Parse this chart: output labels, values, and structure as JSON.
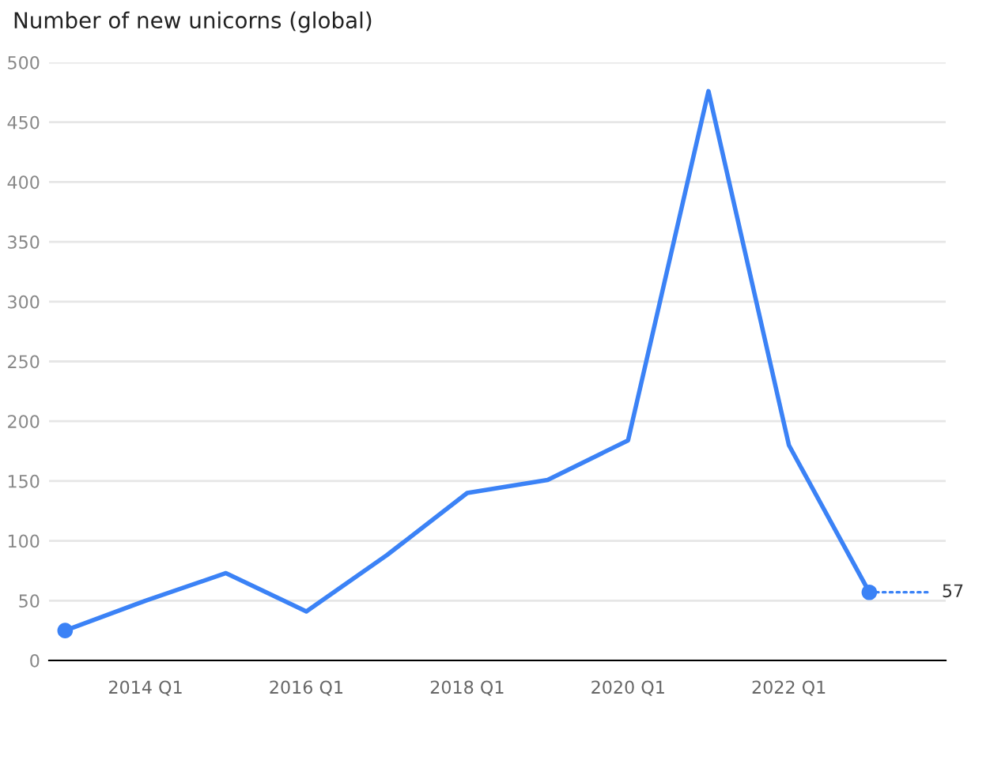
{
  "chart_data": {
    "type": "line",
    "title": "Number of new unicorns (global)",
    "categories": [
      null,
      "2014 Q1",
      null,
      "2016 Q1",
      null,
      "2018 Q1",
      null,
      "2020 Q1",
      null,
      "2022 Q1",
      null
    ],
    "ylim": [
      0,
      500
    ],
    "yticks": [
      0,
      50,
      100,
      150,
      200,
      250,
      300,
      350,
      400,
      450,
      500
    ],
    "grid": "y",
    "series": [
      {
        "color": "#3b82f6",
        "line_style": "solid",
        "values": [
          25,
          50,
          73,
          41,
          88,
          140,
          151,
          184,
          476,
          180,
          57
        ],
        "value_labels": [
          null,
          null,
          null,
          null,
          null,
          null,
          null,
          null,
          null,
          null,
          "57"
        ]
      },
      {
        "type": "scatter",
        "color": "#3b82f6",
        "marker": "circle",
        "values": [
          25,
          null,
          null,
          null,
          null,
          null,
          null,
          null,
          null,
          null,
          57
        ]
      }
    ]
  }
}
